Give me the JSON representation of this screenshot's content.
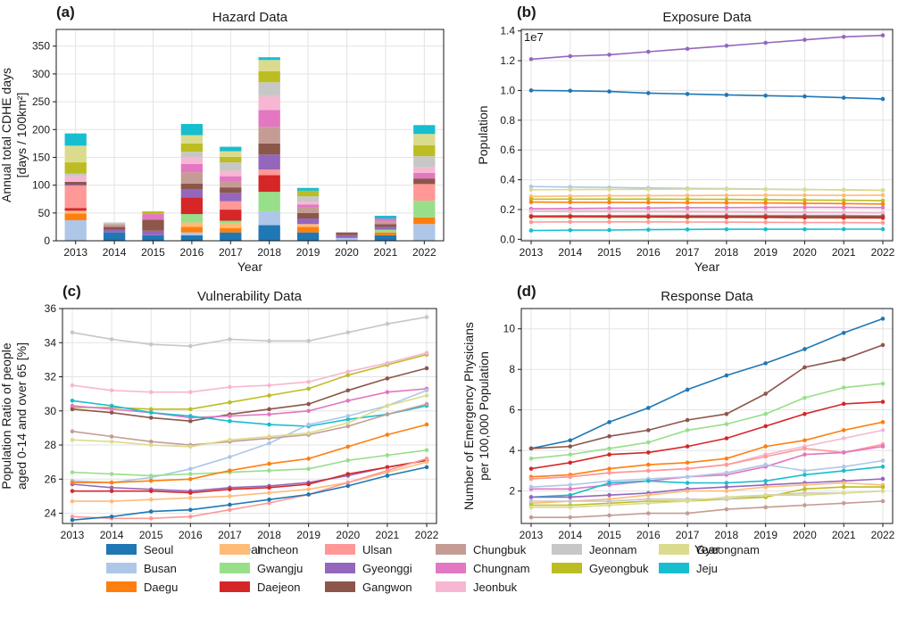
{
  "colors": {
    "Seoul": "#1f77b4",
    "Busan": "#aec7e8",
    "Daegu": "#ff7f0e",
    "Incheon": "#ffbb78",
    "Gwangju": "#98df8a",
    "Daejeon": "#d62728",
    "Ulsan": "#ff9896",
    "Gyeonggi": "#9467bd",
    "Gangwon": "#8c564b",
    "Chungbuk": "#c49c94",
    "Chungnam": "#e377c2",
    "Jeonbuk": "#f7b6d2",
    "Jeonnam": "#c7c7c7",
    "Gyeongbuk": "#bcbd22",
    "Gyeongnam": "#dbdb8d",
    "Jeju": "#17becf"
  },
  "legend": {
    "columns": [
      [
        "Seoul",
        "Busan",
        "Daegu"
      ],
      [
        "Incheon",
        "Gwangju",
        "Daejeon"
      ],
      [
        "Ulsan",
        "Gyeonggi",
        "Gangwon"
      ],
      [
        "Chungbuk",
        "Chungnam",
        "Jeonbuk"
      ],
      [
        "Jeonnam",
        "Gyeongbuk"
      ],
      [
        "Gyeongnam",
        "Jeju"
      ]
    ]
  },
  "chart_data": [
    {
      "panel": "(a)",
      "type": "bar",
      "stacked": true,
      "title": "Hazard Data",
      "xlabel": "Year",
      "ylabel": [
        "Annual total CDHE days",
        "[days / 100km²]"
      ],
      "ylim": [
        0,
        380
      ],
      "yticks": [
        0,
        50,
        100,
        150,
        200,
        250,
        300,
        350
      ],
      "categories": [
        "2013",
        "2014",
        "2015",
        "2016",
        "2017",
        "2018",
        "2019",
        "2020",
        "2021",
        "2022"
      ],
      "series": [
        {
          "name": "Seoul",
          "values": [
            0,
            15,
            10,
            10,
            15,
            28,
            15,
            0,
            10,
            0
          ]
        },
        {
          "name": "Busan",
          "values": [
            37,
            0,
            0,
            5,
            0,
            25,
            0,
            5,
            0,
            30
          ]
        },
        {
          "name": "Daegu",
          "values": [
            12,
            0,
            0,
            10,
            8,
            0,
            10,
            0,
            5,
            12
          ]
        },
        {
          "name": "Incheon",
          "values": [
            5,
            0,
            0,
            8,
            8,
            0,
            5,
            0,
            0,
            0
          ]
        },
        {
          "name": "Gwangju",
          "values": [
            0,
            0,
            0,
            15,
            5,
            35,
            0,
            0,
            5,
            30
          ]
        },
        {
          "name": "Daejeon",
          "values": [
            5,
            0,
            0,
            30,
            20,
            30,
            0,
            0,
            0,
            0
          ]
        },
        {
          "name": "Ulsan",
          "values": [
            40,
            0,
            0,
            0,
            15,
            10,
            0,
            0,
            0,
            30
          ]
        },
        {
          "name": "Gyeonggi",
          "values": [
            2,
            5,
            8,
            15,
            15,
            27,
            10,
            5,
            5,
            0
          ]
        },
        {
          "name": "Gangwon",
          "values": [
            5,
            5,
            20,
            10,
            10,
            20,
            10,
            5,
            5,
            10
          ]
        },
        {
          "name": "Chungbuk",
          "values": [
            0,
            5,
            0,
            20,
            10,
            30,
            10,
            0,
            5,
            0
          ]
        },
        {
          "name": "Chungnam",
          "values": [
            0,
            0,
            10,
            15,
            10,
            30,
            5,
            0,
            5,
            10
          ]
        },
        {
          "name": "Jeonbuk",
          "values": [
            10,
            0,
            0,
            12,
            10,
            25,
            5,
            0,
            0,
            10
          ]
        },
        {
          "name": "Jeonnam",
          "values": [
            5,
            3,
            0,
            10,
            15,
            25,
            10,
            0,
            0,
            20
          ]
        },
        {
          "name": "Gyeongbuk",
          "values": [
            20,
            0,
            5,
            15,
            10,
            20,
            10,
            0,
            0,
            20
          ]
        },
        {
          "name": "Gyeongnam",
          "values": [
            30,
            0,
            0,
            15,
            10,
            20,
            0,
            0,
            0,
            20
          ]
        },
        {
          "name": "Jeju",
          "values": [
            22,
            0,
            0,
            20,
            8,
            5,
            5,
            0,
            5,
            16
          ]
        }
      ]
    },
    {
      "panel": "(b)",
      "type": "line",
      "title": "Exposure Data",
      "xlabel": "Year",
      "ylabel": "Population",
      "offset_label": "1e7",
      "ylim": [
        -0.01,
        1.41
      ],
      "yticks": [
        0.0,
        0.2,
        0.4,
        0.6,
        0.8,
        1.0,
        1.2,
        1.4
      ],
      "ytick_labels": [
        "0.0",
        "0.2",
        "0.4",
        "0.6",
        "0.8",
        "1.0",
        "1.2",
        "1.4"
      ],
      "x": [
        2013,
        2014,
        2015,
        2016,
        2017,
        2018,
        2019,
        2020,
        2021,
        2022
      ],
      "series": [
        {
          "name": "Gyeonggi",
          "values": [
            1.21,
            1.23,
            1.24,
            1.26,
            1.28,
            1.3,
            1.32,
            1.34,
            1.36,
            1.37
          ]
        },
        {
          "name": "Seoul",
          "values": [
            1.0,
            0.998,
            0.993,
            0.982,
            0.976,
            0.97,
            0.965,
            0.96,
            0.951,
            0.943
          ]
        },
        {
          "name": "Busan",
          "values": [
            0.354,
            0.351,
            0.348,
            0.345,
            0.342,
            0.34,
            0.337,
            0.334,
            0.332,
            0.33
          ]
        },
        {
          "name": "Gyeongnam",
          "values": [
            0.333,
            0.334,
            0.335,
            0.336,
            0.337,
            0.337,
            0.336,
            0.334,
            0.332,
            0.33
          ]
        },
        {
          "name": "Incheon",
          "values": [
            0.288,
            0.29,
            0.292,
            0.293,
            0.294,
            0.295,
            0.296,
            0.296,
            0.295,
            0.297
          ]
        },
        {
          "name": "Gyeongbuk",
          "values": [
            0.27,
            0.27,
            0.27,
            0.27,
            0.269,
            0.268,
            0.266,
            0.264,
            0.262,
            0.26
          ]
        },
        {
          "name": "Daegu",
          "values": [
            0.25,
            0.249,
            0.248,
            0.247,
            0.246,
            0.245,
            0.244,
            0.242,
            0.24,
            0.237
          ]
        },
        {
          "name": "Chungnam",
          "values": [
            0.205,
            0.207,
            0.209,
            0.21,
            0.212,
            0.213,
            0.214,
            0.215,
            0.214,
            0.213
          ]
        },
        {
          "name": "Jeonnam",
          "values": [
            0.19,
            0.19,
            0.189,
            0.188,
            0.187,
            0.186,
            0.185,
            0.183,
            0.182,
            0.18
          ]
        },
        {
          "name": "Jeonbuk",
          "values": [
            0.187,
            0.186,
            0.185,
            0.184,
            0.183,
            0.182,
            0.18,
            0.179,
            0.178,
            0.176
          ]
        },
        {
          "name": "Chungbuk",
          "values": [
            0.158,
            0.159,
            0.159,
            0.16,
            0.16,
            0.161,
            0.16,
            0.16,
            0.16,
            0.159
          ]
        },
        {
          "name": "Gangwon",
          "values": [
            0.154,
            0.154,
            0.154,
            0.154,
            0.154,
            0.154,
            0.154,
            0.154,
            0.154,
            0.153
          ]
        },
        {
          "name": "Gwangju",
          "values": [
            0.147,
            0.147,
            0.147,
            0.147,
            0.146,
            0.146,
            0.145,
            0.144,
            0.143,
            0.142
          ]
        },
        {
          "name": "Daejeon",
          "values": [
            0.153,
            0.153,
            0.152,
            0.151,
            0.15,
            0.149,
            0.148,
            0.146,
            0.145,
            0.144
          ]
        },
        {
          "name": "Ulsan",
          "values": [
            0.116,
            0.117,
            0.117,
            0.117,
            0.116,
            0.115,
            0.114,
            0.113,
            0.112,
            0.111
          ]
        },
        {
          "name": "Jeju",
          "values": [
            0.059,
            0.061,
            0.062,
            0.064,
            0.066,
            0.067,
            0.067,
            0.067,
            0.068,
            0.068
          ]
        }
      ]
    },
    {
      "panel": "(c)",
      "type": "line",
      "title": "Vulnerability Data",
      "xlabel": "Year",
      "ylabel": [
        "Population Ratio of people",
        "aged 0-14 and over 65 [%]"
      ],
      "ylim": [
        23.4,
        36.0
      ],
      "yticks": [
        24,
        26,
        28,
        30,
        32,
        34,
        36
      ],
      "x": [
        2013,
        2014,
        2015,
        2016,
        2017,
        2018,
        2019,
        2020,
        2021,
        2022
      ],
      "series": [
        {
          "name": "Jeonnam",
          "values": [
            34.6,
            34.2,
            33.9,
            33.8,
            34.2,
            34.1,
            34.1,
            34.6,
            35.1,
            35.5
          ]
        },
        {
          "name": "Gyeongbuk",
          "values": [
            30.2,
            30.2,
            30.1,
            30.1,
            30.5,
            30.9,
            31.3,
            32.1,
            32.7,
            33.3
          ]
        },
        {
          "name": "Gangwon",
          "values": [
            30.1,
            29.9,
            29.6,
            29.4,
            29.8,
            30.1,
            30.4,
            31.2,
            31.9,
            32.5
          ]
        },
        {
          "name": "Jeonbuk",
          "values": [
            31.5,
            31.2,
            31.1,
            31.1,
            31.4,
            31.5,
            31.7,
            32.3,
            32.8,
            33.4
          ]
        },
        {
          "name": "Chungnam",
          "values": [
            30.3,
            30.1,
            29.9,
            29.6,
            29.7,
            29.8,
            30.0,
            30.6,
            31.1,
            31.3
          ]
        },
        {
          "name": "Jeju",
          "values": [
            30.6,
            30.3,
            29.9,
            29.7,
            29.4,
            29.2,
            29.1,
            29.5,
            29.8,
            30.3
          ]
        },
        {
          "name": "Gyeonggi",
          "values": [
            25.7,
            25.5,
            25.4,
            25.3,
            25.5,
            25.6,
            25.8,
            26.2,
            26.7,
            27.1
          ]
        },
        {
          "name": "Busan",
          "values": [
            25.9,
            25.8,
            26.1,
            26.6,
            27.3,
            28.1,
            29.2,
            29.7,
            30.3,
            31.2
          ]
        },
        {
          "name": "Chungbuk",
          "values": [
            28.8,
            28.5,
            28.2,
            28.0,
            28.2,
            28.4,
            28.6,
            29.1,
            29.8,
            30.4
          ]
        },
        {
          "name": "Gyeongnam",
          "values": [
            28.3,
            28.2,
            28.0,
            27.9,
            28.3,
            28.5,
            28.7,
            29.3,
            30.3,
            30.9
          ]
        },
        {
          "name": "Gwangju",
          "values": [
            26.4,
            26.3,
            26.2,
            26.3,
            26.4,
            26.5,
            26.6,
            27.1,
            27.4,
            27.7
          ]
        },
        {
          "name": "Daegu",
          "values": [
            25.8,
            25.8,
            25.9,
            26.0,
            26.5,
            26.9,
            27.2,
            27.9,
            28.6,
            29.2
          ]
        },
        {
          "name": "Daejeon",
          "values": [
            25.3,
            25.3,
            25.3,
            25.2,
            25.4,
            25.5,
            25.7,
            26.3,
            26.7,
            27.1
          ]
        },
        {
          "name": "Incheon",
          "values": [
            24.7,
            24.7,
            24.8,
            24.9,
            25.0,
            25.2,
            25.4,
            25.8,
            26.4,
            27.0
          ]
        },
        {
          "name": "Ulsan",
          "values": [
            23.8,
            23.7,
            23.7,
            23.8,
            24.2,
            24.6,
            25.1,
            25.8,
            26.5,
            27.2
          ]
        },
        {
          "name": "Seoul",
          "values": [
            23.6,
            23.8,
            24.1,
            24.2,
            24.5,
            24.8,
            25.1,
            25.6,
            26.2,
            26.7
          ]
        }
      ]
    },
    {
      "panel": "(d)",
      "type": "line",
      "title": "Response Data",
      "xlabel": "Year",
      "ylabel": [
        "Number of Emergency Physicians",
        "per 100,000 Population"
      ],
      "ylim": [
        0.4,
        11.0
      ],
      "yticks": [
        2,
        4,
        6,
        8,
        10
      ],
      "x": [
        2013,
        2014,
        2015,
        2016,
        2017,
        2018,
        2019,
        2020,
        2021,
        2022
      ],
      "series": [
        {
          "name": "Seoul",
          "values": [
            4.1,
            4.5,
            5.4,
            6.1,
            7.0,
            7.7,
            8.3,
            9.0,
            9.8,
            10.5
          ]
        },
        {
          "name": "Gangwon",
          "values": [
            4.1,
            4.2,
            4.7,
            5.0,
            5.5,
            5.8,
            6.8,
            8.1,
            8.5,
            9.2
          ]
        },
        {
          "name": "Gwangju",
          "values": [
            3.6,
            3.8,
            4.1,
            4.4,
            5.0,
            5.3,
            5.8,
            6.6,
            7.1,
            7.3
          ]
        },
        {
          "name": "Daejeon",
          "values": [
            3.1,
            3.4,
            3.8,
            3.9,
            4.2,
            4.6,
            5.2,
            5.8,
            6.3,
            6.4
          ]
        },
        {
          "name": "Daegu",
          "values": [
            2.7,
            2.8,
            3.1,
            3.3,
            3.4,
            3.6,
            4.2,
            4.5,
            5.0,
            5.4
          ]
        },
        {
          "name": "Jeonbuk",
          "values": [
            2.6,
            2.7,
            2.9,
            3.0,
            3.1,
            3.3,
            3.8,
            4.2,
            4.6,
            5.0
          ]
        },
        {
          "name": "Ulsan",
          "values": [
            2.6,
            2.7,
            2.9,
            3.0,
            3.1,
            3.3,
            3.7,
            4.1,
            3.9,
            4.3
          ]
        },
        {
          "name": "Chungnam",
          "values": [
            2.1,
            2.1,
            2.3,
            2.5,
            2.7,
            2.8,
            3.2,
            3.8,
            3.9,
            4.2
          ]
        },
        {
          "name": "Busan",
          "values": [
            2.2,
            2.3,
            2.5,
            2.6,
            2.7,
            2.9,
            3.3,
            3.0,
            3.2,
            3.5
          ]
        },
        {
          "name": "Jeju",
          "values": [
            1.7,
            1.8,
            2.4,
            2.5,
            2.4,
            2.4,
            2.5,
            2.8,
            3.0,
            3.2
          ]
        },
        {
          "name": "Gyeonggi",
          "values": [
            1.7,
            1.7,
            1.8,
            1.9,
            2.1,
            2.2,
            2.3,
            2.4,
            2.5,
            2.6
          ]
        },
        {
          "name": "Incheon",
          "values": [
            1.4,
            1.5,
            1.6,
            1.8,
            2.0,
            2.0,
            2.2,
            2.3,
            2.4,
            2.3
          ]
        },
        {
          "name": "Gyeongbuk",
          "values": [
            1.3,
            1.3,
            1.4,
            1.5,
            1.5,
            1.6,
            1.7,
            2.1,
            2.2,
            2.2
          ]
        },
        {
          "name": "Jeonnam",
          "values": [
            1.5,
            1.5,
            1.5,
            1.6,
            1.6,
            1.6,
            1.8,
            1.9,
            1.9,
            2.0
          ]
        },
        {
          "name": "Gyeongnam",
          "values": [
            1.2,
            1.2,
            1.3,
            1.4,
            1.5,
            1.7,
            1.8,
            1.8,
            1.9,
            2.0
          ]
        },
        {
          "name": "Chungbuk",
          "values": [
            0.7,
            0.7,
            0.8,
            0.9,
            0.9,
            1.1,
            1.2,
            1.3,
            1.4,
            1.5
          ]
        }
      ]
    }
  ]
}
